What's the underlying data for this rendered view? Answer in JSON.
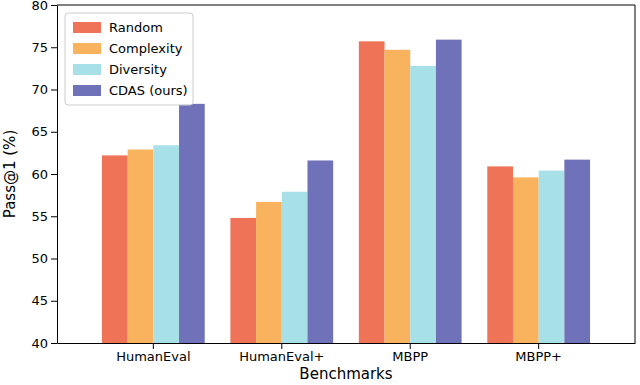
{
  "chart_data": {
    "type": "bar",
    "x_label": "Benchmarks",
    "y_label": "Pass@1 (%)",
    "categories": [
      "HumanEval",
      "HumanEval+",
      "MBPP",
      "MBPP+"
    ],
    "series": [
      {
        "name": "Random",
        "color": "#ef7356",
        "values": [
          62.2,
          54.8,
          75.7,
          60.9
        ]
      },
      {
        "name": "Complexity",
        "color": "#f9b35e",
        "values": [
          62.9,
          56.7,
          74.7,
          59.6
        ]
      },
      {
        "name": "Diversity",
        "color": "#a8e0e8",
        "values": [
          63.4,
          57.9,
          72.8,
          60.4
        ]
      },
      {
        "name": "CDAS (ours)",
        "color": "#6f72b8",
        "values": [
          68.3,
          61.6,
          75.9,
          61.7
        ]
      }
    ],
    "ylim": [
      40,
      80
    ],
    "yticks": [
      40,
      45,
      50,
      55,
      60,
      65,
      70,
      75,
      80
    ],
    "grid": false,
    "legend": "upper left"
  }
}
